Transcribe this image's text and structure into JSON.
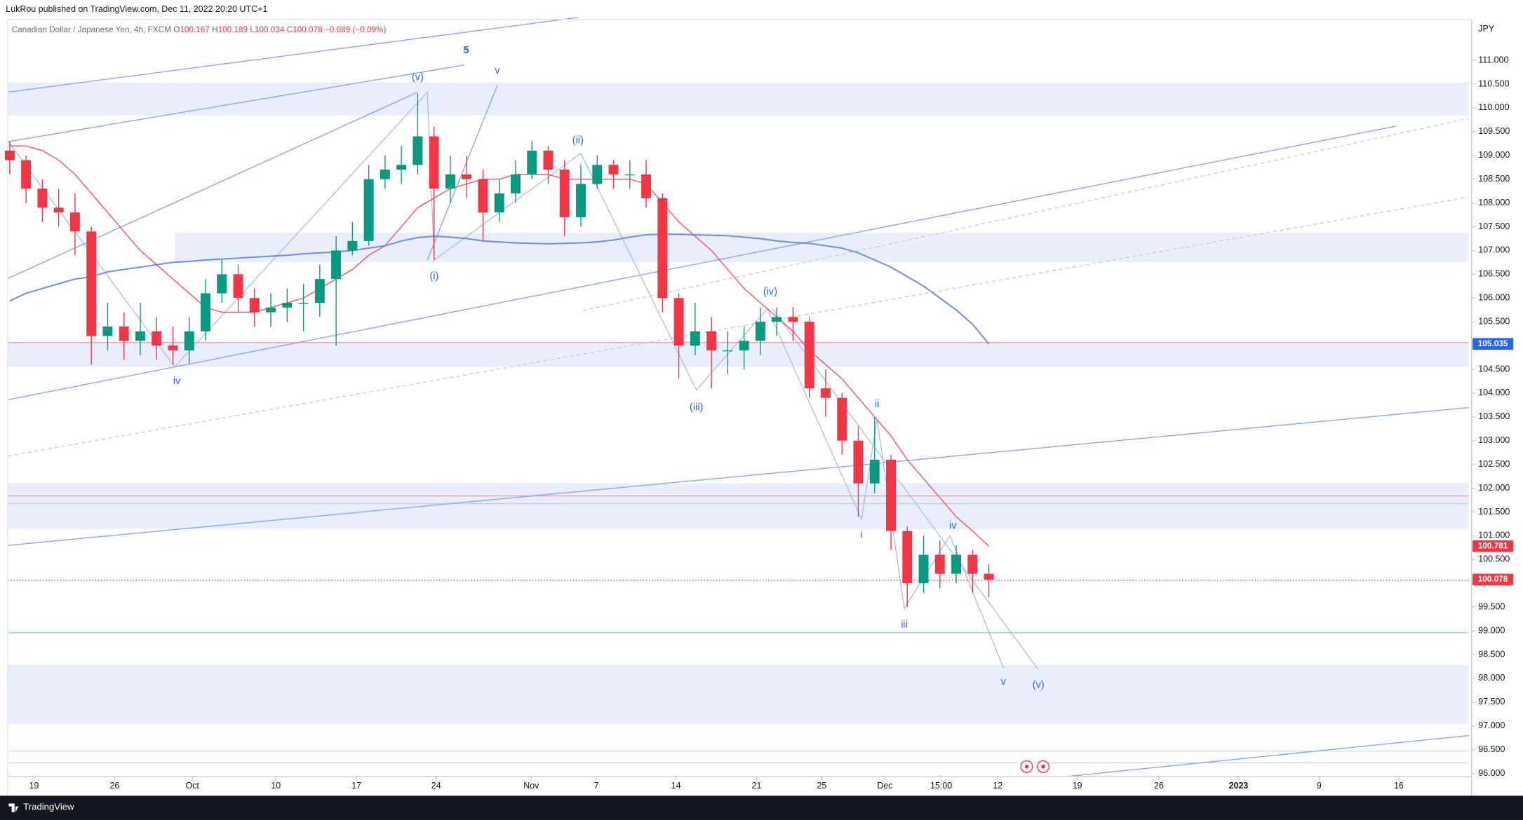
{
  "header": {
    "title": "LukRou published on TradingView.com, Dec 11, 2022 20:20 UTC+1"
  },
  "legend": {
    "symbol": "Canadian Dollar / Japanese Yen, 4h, FXCM",
    "o_label": "O",
    "o": 100.167,
    "h_label": "H",
    "h": 100.189,
    "l_label": "L",
    "l": 100.034,
    "c_label": "C",
    "c": 100.078,
    "change": "−0.089 (−0.09%)"
  },
  "footer": {
    "brand": "TradingView"
  },
  "waves": [
    "5",
    "(v)",
    "v",
    "(ii)",
    "(i)",
    "iv",
    "(iv)",
    "(iii)",
    "ii",
    "i",
    "iv",
    "iii",
    "v",
    "(v)"
  ],
  "chart_data": {
    "type": "candlestick",
    "currency": "JPY",
    "grid": false,
    "up_color": "#089981",
    "down_color": "#f23645",
    "x": [
      0,
      1,
      2,
      3,
      4,
      5,
      6,
      7,
      8,
      9,
      10,
      11,
      12,
      13,
      14,
      15,
      16,
      17,
      18,
      19,
      20,
      21,
      22,
      23,
      24,
      25,
      26,
      27,
      28,
      29,
      30,
      31,
      32,
      33,
      34,
      35,
      36,
      37,
      38,
      39,
      40,
      41,
      42,
      43,
      44,
      45,
      46,
      47,
      48,
      49,
      50,
      51,
      52,
      53,
      54,
      55,
      56,
      57,
      58,
      59,
      60
    ],
    "open": [
      109.1,
      108.9,
      108.3,
      107.9,
      107.8,
      107.4,
      105.2,
      105.4,
      105.1,
      105.3,
      105.0,
      104.9,
      105.3,
      106.1,
      106.5,
      106.0,
      105.7,
      105.8,
      105.9,
      105.9,
      106.4,
      107.0,
      107.2,
      108.5,
      108.7,
      108.8,
      109.4,
      108.3,
      108.6,
      108.5,
      107.8,
      108.2,
      108.6,
      109.1,
      108.7,
      107.7,
      108.4,
      108.8,
      108.6,
      108.6,
      108.1,
      106.0,
      105.0,
      105.3,
      104.9,
      104.9,
      105.1,
      105.5,
      105.6,
      105.5,
      104.1,
      103.9,
      103.0,
      102.1,
      102.6,
      101.1,
      100.0,
      100.6,
      100.2,
      100.6,
      100.2
    ],
    "high": [
      109.3,
      109.0,
      108.5,
      108.3,
      108.2,
      107.5,
      105.9,
      105.7,
      105.9,
      105.6,
      105.4,
      105.6,
      106.4,
      106.8,
      106.7,
      106.2,
      106.1,
      106.2,
      106.3,
      106.7,
      107.3,
      107.6,
      108.8,
      109.0,
      109.2,
      110.3,
      109.6,
      109.0,
      109.0,
      108.7,
      108.5,
      108.9,
      109.3,
      109.2,
      108.9,
      108.8,
      109.0,
      108.9,
      108.9,
      108.9,
      108.2,
      106.1,
      105.9,
      105.6,
      105.3,
      105.4,
      105.8,
      105.8,
      105.8,
      105.6,
      104.5,
      104.0,
      103.3,
      103.5,
      102.7,
      101.2,
      101.0,
      100.9,
      100.8,
      100.7,
      100.4
    ],
    "low": [
      108.6,
      108.0,
      107.6,
      107.5,
      106.9,
      104.6,
      104.9,
      104.7,
      104.8,
      104.7,
      104.6,
      104.6,
      105.1,
      105.9,
      105.7,
      105.4,
      105.4,
      105.5,
      105.3,
      105.6,
      105.0,
      106.9,
      107.1,
      108.3,
      108.4,
      108.6,
      106.8,
      108.0,
      108.1,
      107.2,
      107.6,
      108.0,
      108.5,
      108.4,
      107.3,
      107.5,
      108.3,
      108.3,
      108.3,
      107.9,
      105.7,
      104.3,
      104.8,
      104.1,
      104.4,
      104.5,
      104.8,
      105.2,
      105.1,
      103.9,
      103.5,
      102.7,
      101.4,
      101.9,
      100.7,
      99.5,
      99.8,
      99.9,
      100.0,
      99.8,
      99.7
    ],
    "close": [
      108.9,
      108.3,
      107.9,
      107.8,
      107.4,
      105.2,
      105.4,
      105.1,
      105.3,
      105.0,
      104.9,
      105.3,
      106.1,
      106.5,
      106.0,
      105.7,
      105.8,
      105.9,
      105.9,
      106.4,
      107.0,
      107.2,
      108.5,
      108.7,
      108.8,
      109.4,
      108.3,
      108.6,
      108.5,
      107.8,
      108.2,
      108.6,
      109.1,
      108.7,
      107.7,
      108.4,
      108.8,
      108.6,
      108.6,
      108.1,
      106.0,
      105.0,
      105.3,
      104.9,
      104.9,
      105.1,
      105.5,
      105.6,
      105.5,
      104.1,
      103.9,
      103.0,
      102.1,
      102.6,
      101.1,
      100.0,
      100.6,
      100.2,
      100.6,
      100.2,
      100.078
    ],
    "overlays": [
      {
        "color": "#f23645",
        "values": [
          109.2,
          109.2,
          109.1,
          108.9,
          108.6,
          108.2,
          107.8,
          107.4,
          107.0,
          106.7,
          106.4,
          106.1,
          105.8,
          105.7,
          105.7,
          105.7,
          105.8,
          105.9,
          106.0,
          106.2,
          106.4,
          106.6,
          106.9,
          107.1,
          107.5,
          107.9,
          108.1,
          108.3,
          108.4,
          108.5,
          108.5,
          108.6,
          108.6,
          108.6,
          108.5,
          108.5,
          108.5,
          108.5,
          108.5,
          108.4,
          108.0,
          107.6,
          107.3,
          107.0,
          106.6,
          106.2,
          105.9,
          105.6,
          105.3,
          104.9,
          104.6,
          104.3,
          103.9,
          103.5,
          103.1,
          102.6,
          102.2,
          101.8,
          101.4,
          101.1,
          100.781
        ]
      },
      {
        "color": "#5b7fe0",
        "values": [
          105.94,
          106.1,
          106.2,
          106.3,
          106.4,
          106.45,
          106.55,
          106.6,
          106.65,
          106.7,
          106.75,
          106.77,
          106.8,
          106.82,
          106.84,
          106.86,
          106.88,
          106.9,
          106.93,
          106.95,
          106.97,
          107.0,
          107.05,
          107.1,
          107.2,
          107.27,
          107.3,
          107.28,
          107.25,
          107.2,
          107.18,
          107.16,
          107.15,
          107.14,
          107.15,
          107.16,
          107.18,
          107.22,
          107.28,
          107.33,
          107.34,
          107.34,
          107.33,
          107.32,
          107.31,
          107.28,
          107.25,
          107.2,
          107.17,
          107.15,
          107.1,
          107.05,
          106.95,
          106.8,
          106.65,
          106.45,
          106.25,
          106.0,
          105.75,
          105.45,
          105.035
        ]
      }
    ],
    "price_tags": [
      {
        "value": 105.035,
        "color": "#2962ff"
      },
      {
        "value": 100.781,
        "color": "#f23645"
      },
      {
        "value": 100.078,
        "color": "#f23645"
      }
    ],
    "xlim": [
      -0.12,
      89.4
    ],
    "xticks": [
      {
        "value": 1.49,
        "label": "19"
      },
      {
        "value": 6.43,
        "label": "26"
      },
      {
        "value": 11.19,
        "label": "Oct"
      },
      {
        "value": 16.31,
        "label": "10"
      },
      {
        "value": 21.25,
        "label": "17"
      },
      {
        "value": 26.13,
        "label": "24"
      },
      {
        "value": 31.96,
        "label": "Nov"
      },
      {
        "value": 35.95,
        "label": "7"
      },
      {
        "value": 40.83,
        "label": "14"
      },
      {
        "value": 45.77,
        "label": "21"
      },
      {
        "value": 49.76,
        "label": "25"
      },
      {
        "value": 53.63,
        "label": "Dec"
      },
      {
        "value": 57.08,
        "label": "15:00"
      },
      {
        "value": 60.54,
        "label": "12"
      },
      {
        "value": 65.42,
        "label": "19"
      },
      {
        "value": 70.42,
        "label": "26"
      },
      {
        "value": 75.3,
        "label": "2023"
      },
      {
        "value": 80.24,
        "label": "9"
      },
      {
        "value": 85.12,
        "label": "16"
      }
    ],
    "ylim": [
      95.94,
      111.86
    ],
    "yticks": [
      {
        "value": 96,
        "label": "96.000"
      },
      {
        "value": 96.5,
        "label": "96.500"
      },
      {
        "value": 97,
        "label": "97.000"
      },
      {
        "value": 97.5,
        "label": "97.500"
      },
      {
        "value": 98,
        "label": "98.000"
      },
      {
        "value": 98.5,
        "label": "98.500"
      },
      {
        "value": 99,
        "label": "99.000"
      },
      {
        "value": 99.5,
        "label": "99.500"
      },
      {
        "value": 100,
        "label": "100.000"
      },
      {
        "value": 100.5,
        "label": "100.500"
      },
      {
        "value": 101,
        "label": "101.000"
      },
      {
        "value": 101.5,
        "label": "101.500"
      },
      {
        "value": 102,
        "label": "102.000"
      },
      {
        "value": 102.5,
        "label": "102.500"
      },
      {
        "value": 103,
        "label": "103.000"
      },
      {
        "value": 103.5,
        "label": "103.500"
      },
      {
        "value": 104,
        "label": "104.000"
      },
      {
        "value": 104.5,
        "label": "104.500"
      },
      {
        "value": 105,
        "label": "105.000"
      },
      {
        "value": 105.5,
        "label": "105.500"
      },
      {
        "value": 106,
        "label": "106.000"
      },
      {
        "value": 106.5,
        "label": "106.500"
      },
      {
        "value": 107,
        "label": "107.000"
      },
      {
        "value": 107.5,
        "label": "107.500"
      },
      {
        "value": 108,
        "label": "108.000"
      },
      {
        "value": 108.5,
        "label": "108.500"
      },
      {
        "value": 109,
        "label": "109.000"
      },
      {
        "value": 109.5,
        "label": "109.500"
      },
      {
        "value": 110,
        "label": "110.000"
      },
      {
        "value": 110.5,
        "label": "110.500"
      },
      {
        "value": 111,
        "label": "111.000"
      }
    ]
  }
}
